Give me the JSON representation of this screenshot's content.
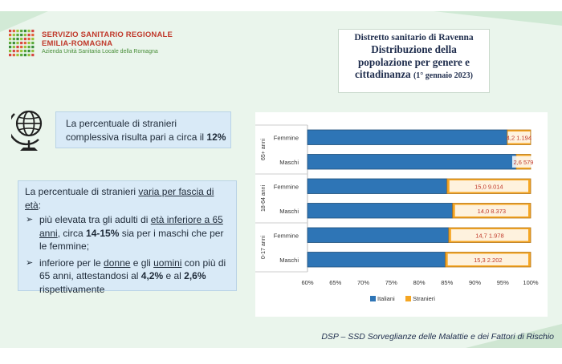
{
  "header": {
    "logo_line1": "SERVIZIO SANITARIO REGIONALE",
    "logo_line2": "EMILIA-ROMAGNA",
    "logo_line3": "Azienda Unità Sanitaria Locale della Romagna",
    "title_line1": "Distretto sanitario di Ravenna",
    "title_line2": "Distribuzione della",
    "title_line3": "popolazione per genere e",
    "title_line4": "cittadinanza",
    "title_date": "(1° gennaio 2023)"
  },
  "info1": {
    "line1": "La percentuale di stranieri",
    "line2": "complessiva risulta pari a circa  il ",
    "value": "12%"
  },
  "info2": {
    "intro_a": "La percentuale di stranieri ",
    "intro_u": "varia per fascia di età",
    "intro_b": ":",
    "b1_a": "più elevata tra gli adulti di ",
    "b1_u1": "età inferiore a 65",
    "b1_u2": "anni",
    "b1_b": ", circa ",
    "b1_bold": "14-15%",
    "b1_c": " sia per i maschi che per le femmine;",
    "b2_a": "inferiore per le ",
    "b2_u1": "donne",
    "b2_b": " e gli ",
    "b2_u2": "uomini",
    "b2_c": " con più di 65 anni, attestandosi al ",
    "b2_v1": "4,2%",
    "b2_d": " e al ",
    "b2_v2": "2,6%",
    "b2_e": " rispettivamente"
  },
  "footer": "DSP – SSD Sorveglianze delle Malattie e dei Fattori di Rischio",
  "colors": {
    "italiani": "#2e75b6",
    "stranieri": "#f5a623",
    "label_text": "#c0392b"
  },
  "chart_data": {
    "type": "bar",
    "orientation": "horizontal",
    "stacked": "percent",
    "groups": [
      "65+ anni",
      "18-64 anni",
      "0-17 anni"
    ],
    "categories": [
      "Femmine",
      "Maschi",
      "Femmine",
      "Maschi",
      "Femmine",
      "Maschi"
    ],
    "series": [
      {
        "name": "Italiani",
        "values": [
          95.8,
          97.4,
          85.0,
          86.0,
          85.3,
          84.7
        ]
      },
      {
        "name": "Stranieri",
        "values": [
          4.2,
          2.6,
          15.0,
          14.0,
          14.7,
          15.3
        ]
      }
    ],
    "data_labels": [
      "4,2 1.194",
      "2,6 579",
      "15,0 9.014",
      "14,0 8.373",
      "14,7 1.978",
      "15,3 2.202"
    ],
    "x_ticks": [
      "60%",
      "65%",
      "70%",
      "75%",
      "80%",
      "85%",
      "90%",
      "95%",
      "100%"
    ],
    "xlim": [
      60,
      100
    ],
    "legend_position": "bottom"
  }
}
